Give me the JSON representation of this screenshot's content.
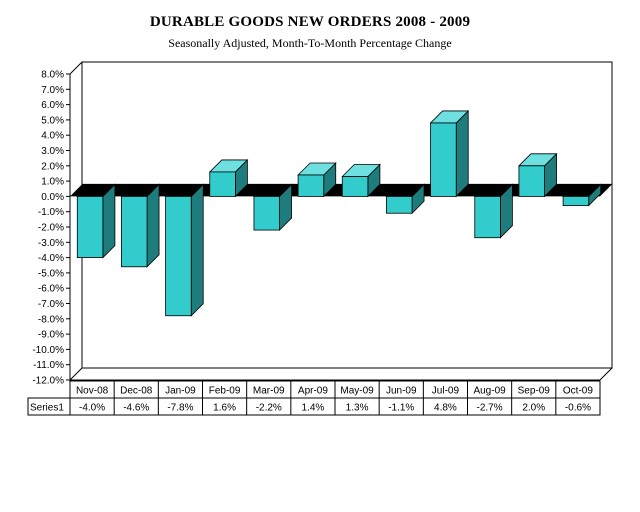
{
  "chart_data": {
    "type": "bar",
    "title": "DURABLE GOODS NEW ORDERS 2008 - 2009",
    "subtitle": "Seasonally Adjusted,  Month-To-Month Percentage Change",
    "categories": [
      "Nov-08",
      "Dec-08",
      "Jan-09",
      "Feb-09",
      "Mar-09",
      "Apr-09",
      "May-09",
      "Jun-09",
      "Jul-09",
      "Aug-09",
      "Sep-09",
      "Oct-09"
    ],
    "series": [
      {
        "name": "Series1",
        "values": [
          -4.0,
          -4.6,
          -7.8,
          1.6,
          -2.2,
          1.4,
          1.3,
          -1.1,
          4.8,
          -2.7,
          2.0,
          -0.6
        ],
        "labels": [
          "-4.0%",
          "-4.6%",
          "-7.8%",
          "1.6%",
          "-2.2%",
          "1.4%",
          "1.3%",
          "-1.1%",
          "4.8%",
          "-2.7%",
          "2.0%",
          "-0.6%"
        ]
      }
    ],
    "ylim": [
      -12.0,
      8.0
    ],
    "yticks": [
      "8.0%",
      "7.0%",
      "6.0%",
      "5.0%",
      "4.0%",
      "3.0%",
      "2.0%",
      "1.0%",
      "0.0%",
      "-1.0%",
      "-2.0%",
      "-3.0%",
      "-4.0%",
      "-5.0%",
      "-6.0%",
      "-7.0%",
      "-8.0%",
      "-9.0%",
      "-10.0%",
      "-11.0%",
      "-12.0%"
    ],
    "grid": false,
    "legend": "data-table",
    "bar_color": "#33cccc",
    "bar_side_color": "#1f7c7c",
    "bar_top_color": "#6ee0e0"
  }
}
